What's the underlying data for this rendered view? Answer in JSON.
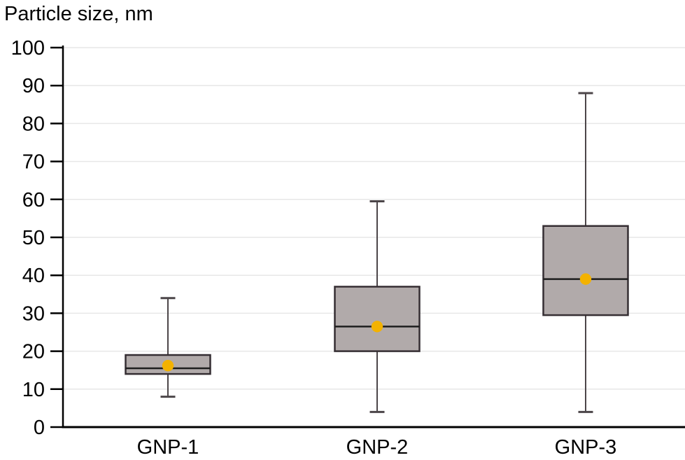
{
  "chart_data": {
    "type": "box",
    "title": "Particle size, nm",
    "ylabel": "Particle size, nm",
    "xlabel": "",
    "categories": [
      "GNP-1",
      "GNP-2",
      "GNP-3"
    ],
    "series": [
      {
        "name": "GNP-1",
        "min": 8,
        "q1": 14,
        "median": 15.5,
        "q3": 19,
        "max": 34,
        "mean": 16.2
      },
      {
        "name": "GNP-2",
        "min": 4,
        "q1": 20,
        "median": 26.5,
        "q3": 37,
        "max": 59.5,
        "mean": 26.5
      },
      {
        "name": "GNP-3",
        "min": 4,
        "q1": 29.5,
        "median": 39,
        "q3": 53,
        "max": 88,
        "mean": 39
      }
    ],
    "ylim": [
      0,
      100
    ],
    "yticks": [
      0,
      10,
      20,
      30,
      40,
      50,
      60,
      70,
      80,
      90,
      100
    ],
    "grid": "horizontal",
    "legend": "none",
    "colors": {
      "box_fill": "#b1aaaa",
      "box_border": "#352e33",
      "median_line": "#1e1e1e",
      "whisker": "#4c4649",
      "mean_dot": "#f3b200",
      "gridline": "#e7e7e7",
      "axis": "#000000",
      "text": "#000000",
      "background": "#ffffff"
    }
  }
}
